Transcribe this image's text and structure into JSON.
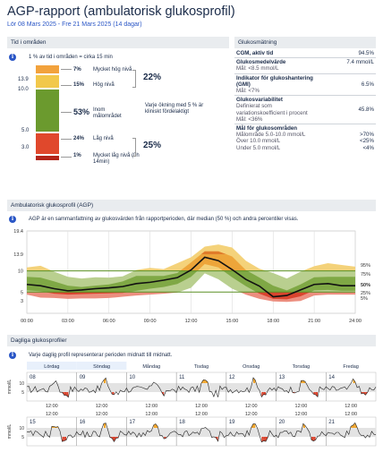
{
  "header": {
    "title": "AGP-rapport (ambulatorisk glukosprofil)",
    "subtitle": "Lör 08 Mars 2025 - Fre 21 Mars 2025 (14 dagar)"
  },
  "tir": {
    "section_title": "Tid i områden",
    "note": "1 % av tid i områden = cirka 15 min",
    "ticks": [
      "13.9",
      "10.0",
      "5.0",
      "3.0"
    ],
    "rows": [
      {
        "pct": "7%",
        "label": "Mycket hög nivå"
      },
      {
        "pct": "15%",
        "label": "Hög nivå"
      },
      {
        "pct": "53%",
        "label": "Inom målområdet"
      },
      {
        "pct": "24%",
        "label": "Låg nivå"
      },
      {
        "pct": "1%",
        "label": "Mycket låg nivå (0h 14min)"
      }
    ],
    "high_total": "22%",
    "low_total": "25%",
    "increase_note": "Varje ökning med 5 % är kliniskt fördelaktigt",
    "colors": {
      "very_high": "#f2a23c",
      "high": "#f2c84b",
      "in_range": "#6b9a2e",
      "low": "#e0482c",
      "very_low": "#b3251a"
    }
  },
  "glucose": {
    "section_title": "Glukosmätning",
    "metrics": [
      {
        "label": "CGM, aktiv tid",
        "value": "94.5%",
        "sub": ""
      },
      {
        "label": "Glukosmedelvärde",
        "value": "7.4 mmol/L",
        "sub": "Mål: <8.5 mmol/L"
      },
      {
        "label": "Indikator för glukoshantering (GMI)",
        "value": "6.5%",
        "sub": "Mål: <7%"
      },
      {
        "label": "Glukosvariabilitet",
        "value": "45.8%",
        "sub": "Definierat som variationskoefficient i procent\nMål: <36%"
      }
    ],
    "targets_title": "Mål för glukosområden",
    "targets": [
      {
        "label": "Målområde 5.0-10.0 mmol/L",
        "value": ">70%"
      },
      {
        "label": "Över 10.0 mmol/L",
        "value": "<25%"
      },
      {
        "label": "Under 5.0 mmol/L",
        "value": "<4%"
      }
    ]
  },
  "agp": {
    "section_title": "Ambulatorisk glukosprofil (AGP)",
    "note": "AGP är en sammanfattning av glukosvärden från rapportperioden, där median (50 %) och andra percentiler visas.",
    "yticks": [
      "19.4",
      "13.9",
      "10",
      "5",
      "3"
    ],
    "xticks": [
      "00:00",
      "03:00",
      "06:00",
      "09:00",
      "12:00",
      "15:00",
      "18:00",
      "21:00",
      "24:00"
    ],
    "percentile_labels": [
      "95%",
      "75%",
      "50%",
      "25%",
      "5%"
    ]
  },
  "chart_data": {
    "type": "area",
    "title": "Ambulatorisk glukosprofil (AGP)",
    "xlabel": "",
    "ylabel": "",
    "x": [
      0,
      1,
      2,
      3,
      4,
      5,
      6,
      7,
      8,
      9,
      10,
      11,
      12,
      13,
      14,
      15,
      16,
      17,
      18,
      19,
      20,
      21,
      22,
      23,
      24
    ],
    "ylim": [
      0,
      19.4
    ],
    "series": [
      {
        "name": "95%",
        "values": [
          10.8,
          11.2,
          9.8,
          8.6,
          8.2,
          8.5,
          8.4,
          8.7,
          10.2,
          10.7,
          10.4,
          11.8,
          13.2,
          15.7,
          16.2,
          15.5,
          12.4,
          10.5,
          9.5,
          8.2,
          9.8,
          11.1,
          11.8,
          11.4,
          11.0
        ]
      },
      {
        "name": "75%",
        "values": [
          8.6,
          8.4,
          7.5,
          6.5,
          6.2,
          6.5,
          6.8,
          7.5,
          8.8,
          8.8,
          8.8,
          9.5,
          12.0,
          14.6,
          14.6,
          13.4,
          10.2,
          8.4,
          6.5,
          5.4,
          6.8,
          8.5,
          8.6,
          8.6,
          8.6
        ]
      },
      {
        "name": "50%",
        "values": [
          6.8,
          6.5,
          5.8,
          5.3,
          5.5,
          5.8,
          6.0,
          6.3,
          7.0,
          7.3,
          7.8,
          8.4,
          10.2,
          13.2,
          12.4,
          10.3,
          8.0,
          6.4,
          3.9,
          4.2,
          5.5,
          6.8,
          7.0,
          6.5,
          6.5
        ]
      },
      {
        "name": "25%",
        "values": [
          5.4,
          5.2,
          4.6,
          4.4,
          4.5,
          4.6,
          4.7,
          4.8,
          5.3,
          5.8,
          6.2,
          6.9,
          8.6,
          11.6,
          10.8,
          8.5,
          6.4,
          4.6,
          3.4,
          3.3,
          4.0,
          5.4,
          5.5,
          5.3,
          5.3
        ]
      },
      {
        "name": "5%",
        "values": [
          4.4,
          3.7,
          3.6,
          3.4,
          3.5,
          3.5,
          3.6,
          3.9,
          4.2,
          4.4,
          4.6,
          4.9,
          6.0,
          9.4,
          8.0,
          5.8,
          4.4,
          3.4,
          2.8,
          2.7,
          2.9,
          4.2,
          4.4,
          4.4,
          4.4
        ]
      }
    ],
    "target_range": [
      5,
      10
    ]
  },
  "daily": {
    "section_title": "Dagliga glukosprofiler",
    "note": "Varje daglig profil representerar perioden midnatt till midnatt.",
    "weekdays": [
      "Lördag",
      "Söndag",
      "Måndag",
      "Tisdag",
      "Onsdag",
      "Torsdag",
      "Fredag"
    ],
    "week1": [
      "08",
      "09",
      "10",
      "11",
      "12",
      "13",
      "14"
    ],
    "week2": [
      "15",
      "16",
      "17",
      "18",
      "19",
      "20",
      "21"
    ],
    "noon": "12:00",
    "ylabel": "mmol/L",
    "yticks": [
      "10",
      "5"
    ]
  }
}
